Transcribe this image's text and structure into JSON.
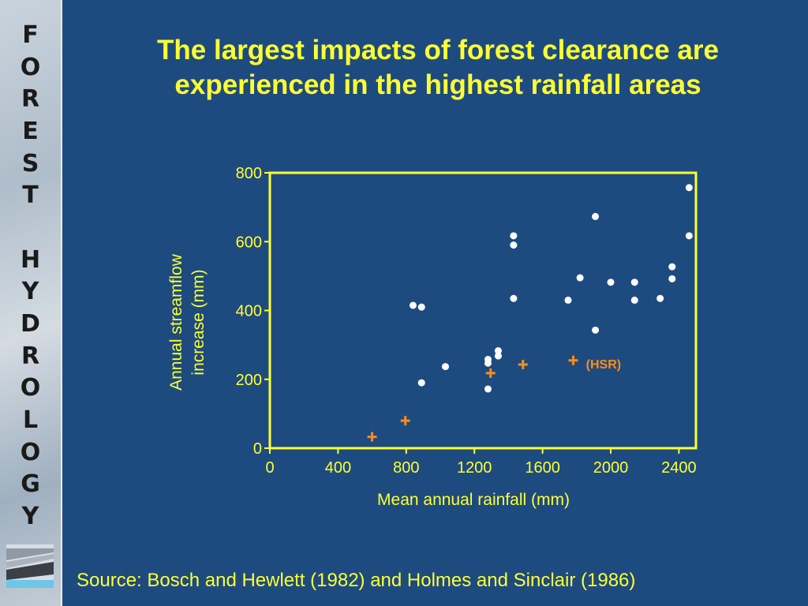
{
  "sidebar": {
    "letters": [
      "F",
      "O",
      "R",
      "E",
      "S",
      "T",
      "",
      "H",
      "Y",
      "D",
      "R",
      "O",
      "L",
      "O",
      "G",
      "Y"
    ],
    "logo_icon": "forest-hydrology-logo-icon"
  },
  "slide": {
    "title_line1": "The largest impacts of forest clearance are",
    "title_line2": "experienced in the highest rainfall areas",
    "source": "Source: Bosch and Hewlett (1982) and Holmes and Sinclair (1986)"
  },
  "colors": {
    "background": "#1d4b80",
    "title": "#ffff33",
    "axis": "#ffff33",
    "points": "#ffffff",
    "hsr_points": "#ff8c1a"
  },
  "chart_data": {
    "type": "scatter",
    "title": "",
    "xlabel": "Mean annual rainfall (mm)",
    "ylabel_lines": [
      "Annual streamflow",
      "increase (mm)"
    ],
    "xlim": [
      0,
      2500
    ],
    "ylim": [
      0,
      800
    ],
    "xticks": [
      0,
      400,
      800,
      1200,
      1600,
      2000,
      2400
    ],
    "yticks": [
      0,
      200,
      400,
      600,
      800
    ],
    "grid": false,
    "series": [
      {
        "marker": "dot",
        "color": "#ffffff",
        "points": [
          [
            840,
            415
          ],
          [
            890,
            410
          ],
          [
            890,
            190
          ],
          [
            1030,
            237
          ],
          [
            1280,
            258
          ],
          [
            1280,
            247
          ],
          [
            1280,
            172
          ],
          [
            1340,
            283
          ],
          [
            1340,
            268
          ],
          [
            1430,
            617
          ],
          [
            1430,
            590
          ],
          [
            1430,
            435
          ],
          [
            1750,
            430
          ],
          [
            1820,
            495
          ],
          [
            1910,
            673
          ],
          [
            1910,
            343
          ],
          [
            2000,
            482
          ],
          [
            2140,
            482
          ],
          [
            2140,
            430
          ],
          [
            2290,
            435
          ],
          [
            2360,
            527
          ],
          [
            2360,
            492
          ],
          [
            2460,
            757
          ],
          [
            2460,
            617
          ]
        ]
      },
      {
        "name": "(HSR)",
        "marker": "plus",
        "color": "#ff8c1a",
        "points": [
          [
            600,
            33
          ],
          [
            795,
            80
          ],
          [
            1295,
            218
          ],
          [
            1485,
            243
          ],
          [
            1780,
            255
          ]
        ]
      }
    ],
    "annotations": [
      {
        "text": "(HSR)",
        "x": 1855,
        "y": 245
      }
    ]
  }
}
